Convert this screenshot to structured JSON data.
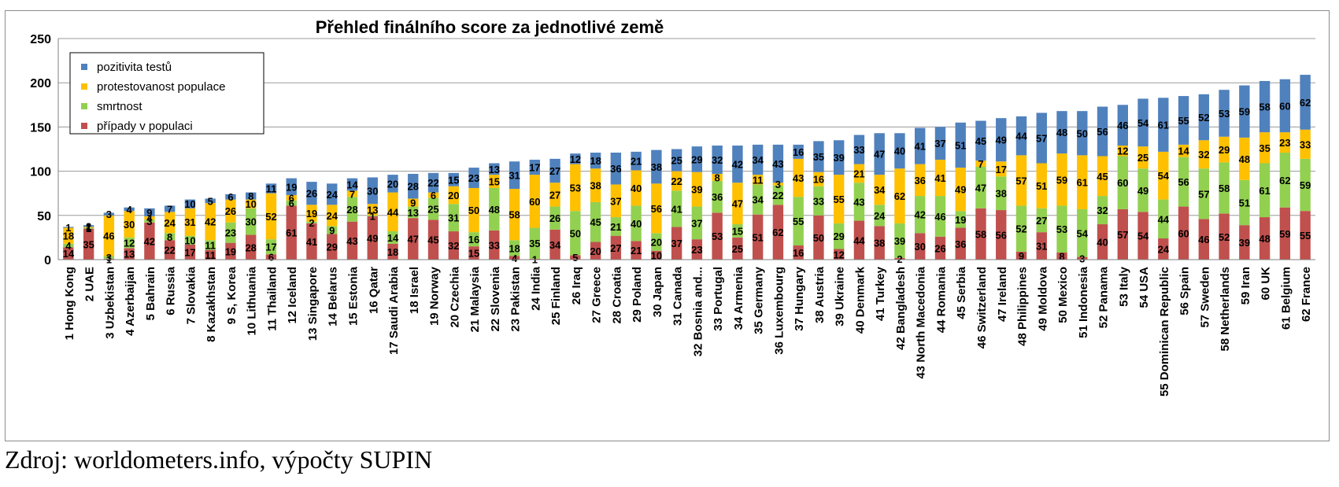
{
  "chart_data": {
    "type": "bar",
    "stacked": true,
    "title": "Přehled finálního score za jednotlivé země",
    "xlabel": "",
    "ylabel": "",
    "ylim": [
      0,
      250
    ],
    "yticks": [
      0,
      50,
      100,
      150,
      200,
      250
    ],
    "grid": true,
    "legend_position": "top-left",
    "categories": [
      "1 Hong Kong",
      "2 UAE",
      "3 Uzbekistan",
      "4 Azerbaijan",
      "5 Bahrain",
      "6 Russia",
      "7 Slovakia",
      "8 Kazakhstan",
      "9 S, Korea",
      "10 Lithuania",
      "11 Thailand",
      "12 Iceland",
      "13 Singapore",
      "14 Belarus",
      "15 Estonia",
      "16 Qatar",
      "17 Saudi Arabia",
      "18 Israel",
      "19 Norway",
      "20 Czechia",
      "21 Malaysia",
      "22 Slovenia",
      "23 Pakistan",
      "24 India",
      "25 Finland",
      "26 Iraq",
      "27 Greece",
      "28 Croatia",
      "29 Poland",
      "30 Japan",
      "31 Canada",
      "32 Bosnia and...",
      "33 Portugal",
      "34 Armenia",
      "35 Germany",
      "36 Luxembourg",
      "37 Hungary",
      "38 Austria",
      "39 Ukraine",
      "40 Denmark",
      "41 Turkey",
      "42 Bangladesh",
      "43 North Macedonia",
      "44 Romania",
      "45 Serbia",
      "46 Switzerland",
      "47 Ireland",
      "48 Philippines",
      "49 Moldova",
      "50 Mexico",
      "51 Indonesia",
      "52 Panama",
      "53 Italy",
      "54 USA",
      "55 Dominican Republic",
      "56 Spain",
      "57 Sweden",
      "58 Netherlands",
      "59 Iran",
      "60 UK",
      "61 Belgium",
      "62 France"
    ],
    "series": [
      {
        "name": "případy v populaci",
        "color": "#c0504d",
        "values": [
          14,
          35,
          1,
          13,
          42,
          22,
          17,
          11,
          19,
          28,
          6,
          61,
          41,
          29,
          43,
          49,
          18,
          47,
          45,
          32,
          15,
          33,
          4,
          1,
          34,
          5,
          20,
          27,
          21,
          10,
          37,
          23,
          53,
          25,
          51,
          62,
          16,
          50,
          12,
          44,
          38,
          2,
          30,
          26,
          36,
          58,
          56,
          9,
          31,
          8,
          3,
          40,
          57,
          54,
          24,
          60,
          46,
          52,
          39,
          48,
          59,
          55
        ]
      },
      {
        "name": "smrtnost",
        "color": "#92d050",
        "values": [
          4,
          1,
          3,
          12,
          3,
          8,
          10,
          11,
          23,
          30,
          17,
          6,
          2,
          9,
          28,
          1,
          14,
          13,
          25,
          31,
          16,
          48,
          18,
          35,
          26,
          50,
          45,
          21,
          40,
          20,
          41,
          37,
          36,
          15,
          34,
          22,
          55,
          33,
          29,
          43,
          24,
          39,
          42,
          46,
          19,
          47,
          38,
          52,
          27,
          53,
          54,
          32,
          60,
          49,
          44,
          56,
          57,
          58,
          51,
          61,
          62,
          59
        ]
      },
      {
        "name": "protestovanost populace",
        "color": "#ffc000",
        "values": [
          18,
          1,
          46,
          30,
          4,
          24,
          31,
          42,
          26,
          10,
          52,
          6,
          19,
          24,
          7,
          13,
          44,
          9,
          6,
          20,
          50,
          15,
          58,
          60,
          27,
          53,
          38,
          37,
          40,
          56,
          22,
          39,
          8,
          47,
          11,
          3,
          43,
          16,
          55,
          21,
          34,
          62,
          36,
          41,
          49,
          7,
          17,
          57,
          51,
          59,
          61,
          45,
          12,
          25,
          54,
          14,
          32,
          29,
          48,
          35,
          23,
          33
        ]
      },
      {
        "name": "pozitivita testů",
        "color": "#4f81bd",
        "values": [
          1,
          2,
          3,
          4,
          9,
          7,
          10,
          5,
          6,
          8,
          11,
          19,
          26,
          24,
          14,
          30,
          20,
          28,
          22,
          15,
          23,
          13,
          31,
          17,
          27,
          12,
          18,
          36,
          21,
          38,
          25,
          29,
          32,
          42,
          34,
          43,
          16,
          35,
          39,
          33,
          47,
          40,
          41,
          37,
          51,
          45,
          49,
          44,
          57,
          48,
          50,
          56,
          46,
          54,
          61,
          55,
          52,
          53,
          59,
          58,
          60,
          62
        ]
      }
    ]
  },
  "source_note": "Zdroj: worldometers.info, výpočty SUPIN"
}
